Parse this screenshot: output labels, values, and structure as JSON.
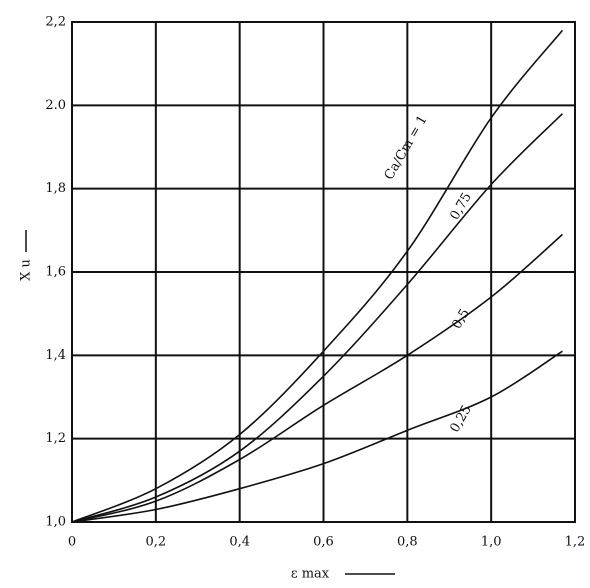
{
  "chart_data": {
    "type": "line",
    "x_label": "ε max",
    "y_label": "X u",
    "x": [
      0,
      0.2,
      0.4,
      0.6,
      0.8,
      1.0,
      1.17
    ],
    "series": [
      {
        "name": "Ca/Cm = 1",
        "color": "#111111",
        "values": [
          1.0,
          1.08,
          1.21,
          1.41,
          1.65,
          1.97,
          2.18
        ]
      },
      {
        "name": "0,75",
        "color": "#111111",
        "values": [
          1.0,
          1.06,
          1.17,
          1.35,
          1.57,
          1.81,
          1.98
        ]
      },
      {
        "name": "0,5",
        "color": "#111111",
        "values": [
          1.0,
          1.05,
          1.15,
          1.28,
          1.4,
          1.54,
          1.69
        ]
      },
      {
        "name": "0,25",
        "color": "#111111",
        "values": [
          1.0,
          1.03,
          1.08,
          1.14,
          1.22,
          1.3,
          1.41
        ]
      }
    ],
    "xlim": [
      0,
      1.2
    ],
    "ylim": [
      1.0,
      2.2
    ],
    "xticks": [
      0,
      {
        "value": 0.2,
        "label": "0,2"
      },
      {
        "value": 0.4,
        "label": "0,4"
      },
      {
        "value": 0.6,
        "label": "0,6"
      },
      {
        "value": 0.8,
        "label": "0,8"
      },
      {
        "value": 1.0,
        "label": "1,0"
      },
      {
        "value": 1.2,
        "label": "1,2"
      }
    ],
    "yticks": [
      {
        "value": 1.0,
        "label": "1,0"
      },
      {
        "value": 1.2,
        "label": "1,2"
      },
      {
        "value": 1.4,
        "label": "1,4"
      },
      {
        "value": 1.6,
        "label": "1,6"
      },
      {
        "value": 1.8,
        "label": "1,8"
      },
      {
        "value": 2.0,
        "label": "2.0"
      },
      {
        "value": 2.2,
        "label": "2,2"
      }
    ],
    "grid": true
  }
}
